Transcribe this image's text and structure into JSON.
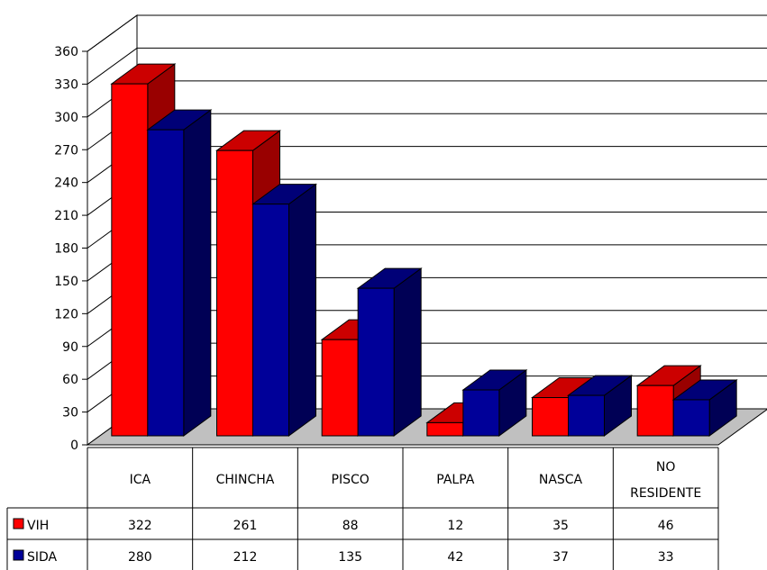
{
  "chart_data": {
    "type": "bar",
    "categories": [
      "ICA",
      "CHINCHA",
      "PISCO",
      "PALPA",
      "NASCA",
      [
        "NO",
        "RESIDENTE"
      ]
    ],
    "series": [
      {
        "name": "VIH",
        "values": [
          322,
          261,
          88,
          12,
          35,
          46
        ],
        "color": "#ff0000",
        "side": "#990000",
        "top": "#cc0000"
      },
      {
        "name": "SIDA",
        "values": [
          280,
          212,
          135,
          42,
          37,
          33
        ],
        "color": "#000099",
        "side": "#000055",
        "top": "#000077"
      }
    ],
    "ylim": [
      0,
      360
    ],
    "yticks": [
      "0",
      "30",
      "60",
      "90",
      "120",
      "150",
      "180",
      "210",
      "240",
      "270",
      "300",
      "330",
      "360"
    ],
    "grid": true,
    "legend": "data-table-left",
    "style": "3d-clustered-column"
  }
}
